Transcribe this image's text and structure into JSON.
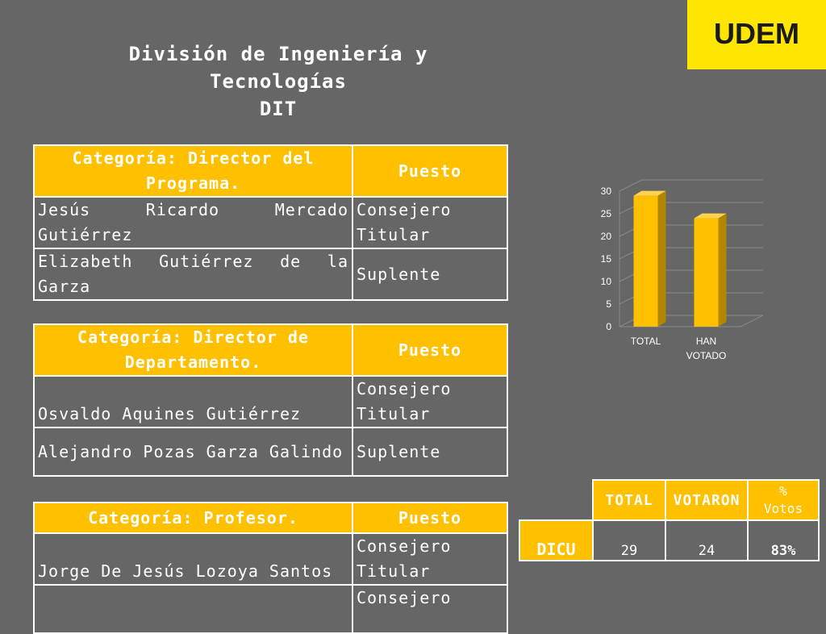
{
  "logo": {
    "text": "UDEM",
    "bg": "#ffe600"
  },
  "title": {
    "line1": "División de Ingeniería y",
    "line2": "Tecnologías",
    "line3": "DIT"
  },
  "tables": [
    {
      "header_category": "Categoría: Director del Programa.",
      "header_role": "Puesto",
      "rows": [
        {
          "name": "Jesús Ricardo Mercado Gutiérrez",
          "role": "Consejero Titular"
        },
        {
          "name": "Elizabeth Gutiérrez de la Garza",
          "role": "Suplente"
        }
      ]
    },
    {
      "header_category": "Categoría: Director de Departamento.",
      "header_role": "Puesto",
      "rows": [
        {
          "name": "Osvaldo Aquines Gutiérrez",
          "role": "Consejero Titular"
        },
        {
          "name": "Alejandro Pozas Garza Galindo",
          "role": "Suplente"
        }
      ]
    },
    {
      "header_category": "Categoría: Profesor.",
      "header_role": "Puesto",
      "rows": [
        {
          "name": "Jorge De Jesús Lozoya Santos",
          "role": "Consejero Titular"
        },
        {
          "name": "",
          "role": "Consejero"
        }
      ]
    }
  ],
  "chart_data": {
    "type": "bar",
    "categories": [
      "TOTAL",
      "HAN VOTADO"
    ],
    "values": [
      29,
      24
    ],
    "ylim": [
      0,
      30
    ],
    "yticks": [
      0,
      5,
      10,
      15,
      20,
      25,
      30
    ],
    "color": "#ffc000",
    "grid": true
  },
  "votes": {
    "headers": [
      "TOTAL",
      "VOTARON",
      "%",
      "Votos"
    ],
    "row_label": "DICU",
    "total": "29",
    "votaron": "24",
    "percent": "83%"
  },
  "colors": {
    "accent": "#ffc000",
    "background": "#666666"
  }
}
